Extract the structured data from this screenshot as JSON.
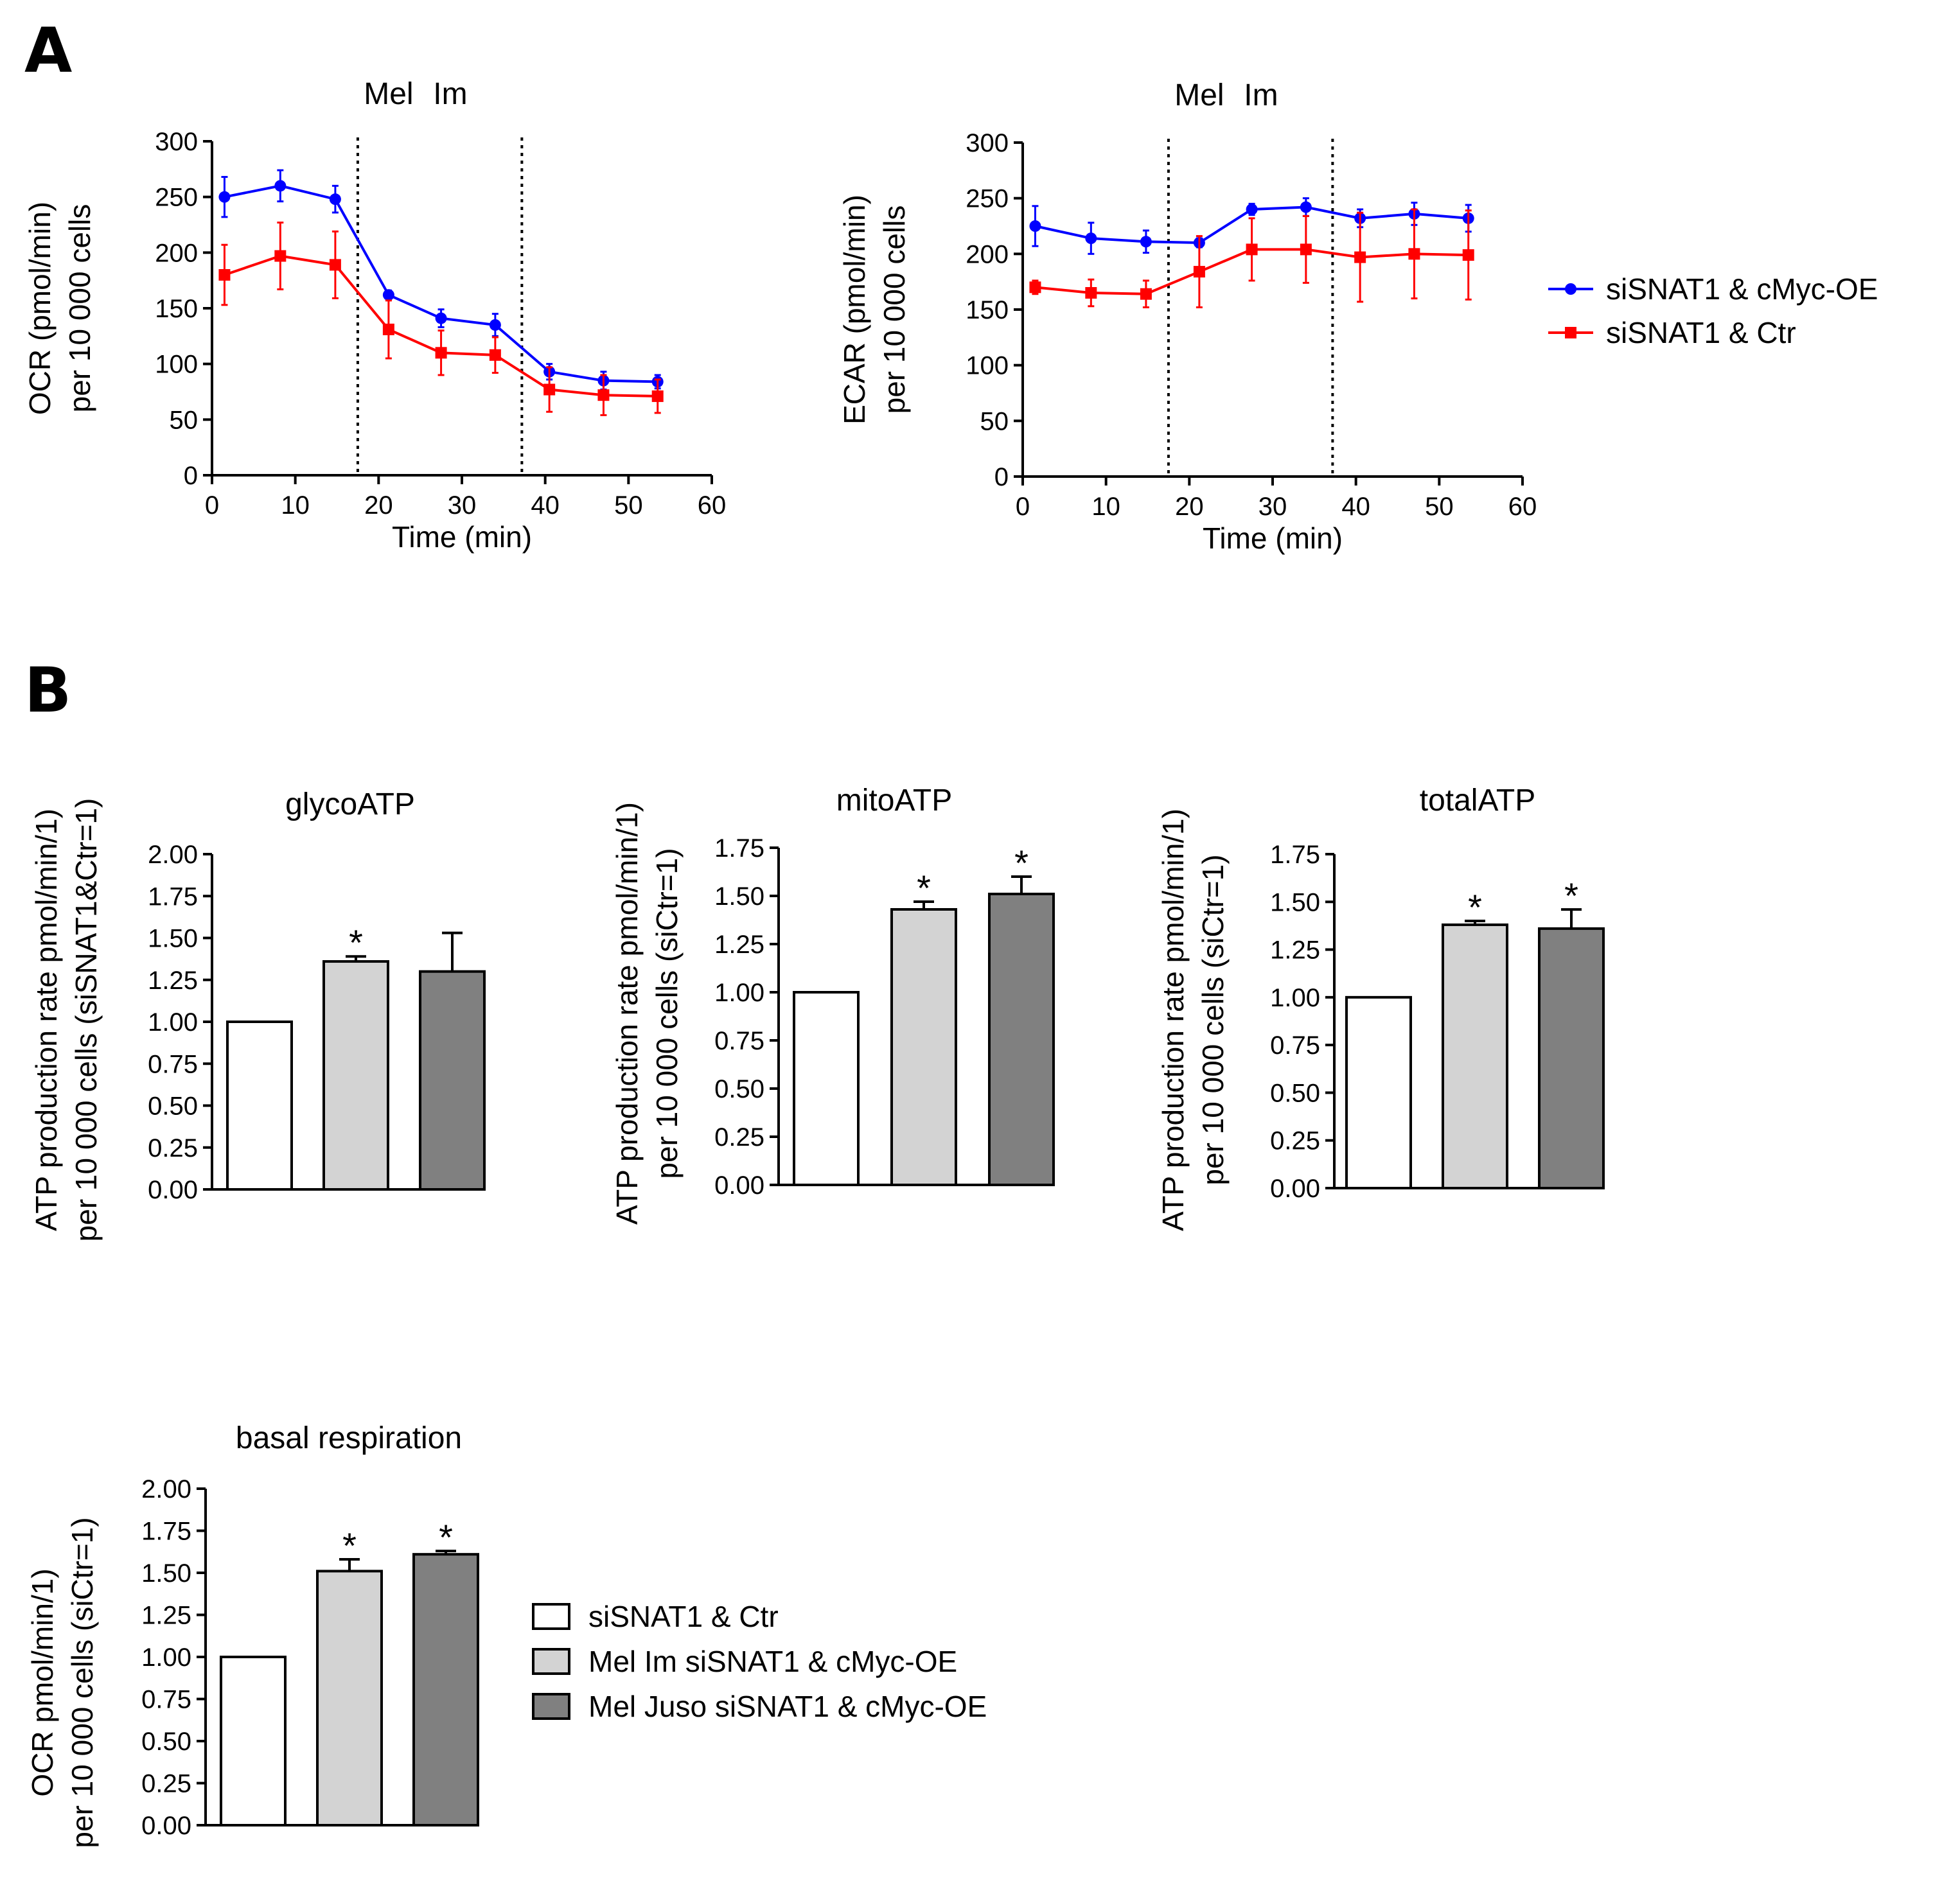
{
  "panels": {
    "a_label": "A",
    "b_label": "B"
  },
  "legend_lines": [
    {
      "label": "siSNAT1 & cMyc-OE",
      "color": "#0000ff",
      "marker": "circle"
    },
    {
      "label": "siSNAT1 & Ctr",
      "color": "#ff0000",
      "marker": "square"
    }
  ],
  "legend_bars": [
    {
      "label": "siSNAT1 & Ctr",
      "fill": "#ffffff"
    },
    {
      "label": "Mel Im siSNAT1 & cMyc-OE",
      "fill": "#d3d3d3"
    },
    {
      "label": "Mel Juso siSNAT1 & cMyc-OE",
      "fill": "#808080"
    }
  ],
  "chart_data": [
    {
      "type": "line",
      "id": "ocr",
      "ylabel_lines": [
        "OCR (pmol/min)",
        "per 10 000 cells"
      ],
      "xlabel": "Time (min)",
      "annotations": [
        "Mel",
        "Im"
      ],
      "injection_times": [
        17.5,
        37.2
      ],
      "xlim": [
        0,
        60
      ],
      "ylim": [
        0,
        300
      ],
      "xticks": [
        0,
        10,
        20,
        30,
        40,
        50,
        60
      ],
      "yticks": [
        0,
        50,
        100,
        150,
        200,
        250,
        300
      ],
      "x": [
        1.5,
        8.2,
        14.8,
        21.2,
        27.5,
        34.0,
        40.5,
        47.0,
        53.5
      ],
      "series": [
        {
          "name": "siSNAT1 & cMyc-OE",
          "color": "#0000ff",
          "marker": "circle",
          "values": [
            250,
            260,
            248,
            162,
            141,
            135,
            93,
            85,
            84
          ],
          "errors": [
            18,
            14,
            12,
            4,
            8,
            10,
            7,
            8,
            6
          ]
        },
        {
          "name": "siSNAT1 & Ctr",
          "color": "#ff0000",
          "marker": "square",
          "values": [
            180,
            197,
            189,
            131,
            110,
            108,
            77,
            72,
            71
          ],
          "errors": [
            27,
            30,
            30,
            26,
            20,
            16,
            20,
            18,
            15
          ]
        }
      ]
    },
    {
      "type": "line",
      "id": "ecar",
      "ylabel_lines": [
        "ECAR (pmol/min)",
        "per 10 000 cells"
      ],
      "xlabel": "Time (min)",
      "annotations": [
        "Mel",
        "Im"
      ],
      "injection_times": [
        17.5,
        37.2
      ],
      "xlim": [
        0,
        60
      ],
      "ylim": [
        0,
        300
      ],
      "xticks": [
        0,
        10,
        20,
        30,
        40,
        50,
        60
      ],
      "yticks": [
        0,
        50,
        100,
        150,
        200,
        250,
        300
      ],
      "x": [
        1.5,
        8.2,
        14.8,
        21.2,
        27.5,
        34.0,
        40.5,
        47.0,
        53.5
      ],
      "series": [
        {
          "name": "siSNAT1 & cMyc-OE",
          "color": "#0000ff",
          "marker": "circle",
          "values": [
            225,
            214,
            211,
            210,
            240,
            242,
            232,
            236,
            232
          ],
          "errors": [
            18,
            14,
            10,
            4,
            5,
            8,
            8,
            10,
            12
          ]
        },
        {
          "name": "siSNAT1 & Ctr",
          "color": "#ff0000",
          "marker": "square",
          "values": [
            170,
            165,
            164,
            184,
            204,
            204,
            197,
            200,
            199
          ],
          "errors": [
            6,
            12,
            12,
            32,
            28,
            30,
            40,
            40,
            40
          ]
        }
      ]
    },
    {
      "type": "bar",
      "id": "glyco",
      "title": "glycoATP",
      "ylabel_lines": [
        "ATP production rate pmol/min/1)",
        "per 10 000 cells (siSNAT1&Ctr=1)"
      ],
      "ylim": [
        0,
        2.0
      ],
      "yticks": [
        "0.00",
        "0.25",
        "0.50",
        "0.75",
        "1.00",
        "1.25",
        "1.50",
        "1.75",
        "2.00"
      ],
      "values": [
        1.0,
        1.36,
        1.3
      ],
      "errors": [
        0,
        0.03,
        0.23
      ],
      "significance": [
        "",
        "*",
        ""
      ],
      "fills": [
        "#ffffff",
        "#d3d3d3",
        "#808080"
      ]
    },
    {
      "type": "bar",
      "id": "mito",
      "title": "mitoATP",
      "ylabel_lines": [
        "ATP production rate pmol/min/1)",
        "per 10 000 cells (siCtr=1)"
      ],
      "ylim": [
        0,
        1.75
      ],
      "yticks": [
        "0.00",
        "0.25",
        "0.50",
        "0.75",
        "1.00",
        "1.25",
        "1.50",
        "1.75"
      ],
      "values": [
        1.0,
        1.43,
        1.51
      ],
      "errors": [
        0,
        0.04,
        0.09
      ],
      "significance": [
        "",
        "*",
        "*"
      ],
      "fills": [
        "#ffffff",
        "#d3d3d3",
        "#808080"
      ]
    },
    {
      "type": "bar",
      "id": "total",
      "title": "totalATP",
      "ylabel_lines": [
        "ATP production rate pmol/min/1)",
        "per 10 000 cells (siCtr=1)"
      ],
      "ylim": [
        0,
        1.75
      ],
      "yticks": [
        "0.00",
        "0.25",
        "0.50",
        "0.75",
        "1.00",
        "1.25",
        "1.50",
        "1.75"
      ],
      "values": [
        1.0,
        1.38,
        1.36
      ],
      "errors": [
        0,
        0.02,
        0.1
      ],
      "significance": [
        "",
        "*",
        "*"
      ],
      "fills": [
        "#ffffff",
        "#d3d3d3",
        "#808080"
      ]
    },
    {
      "type": "bar",
      "id": "basal",
      "title": "basal respiration",
      "ylabel_lines": [
        "OCR pmol/min/1)",
        "per 10 000 cells (siCtr=1)"
      ],
      "ylim": [
        0,
        2.0
      ],
      "yticks": [
        "0.00",
        "0.25",
        "0.50",
        "0.75",
        "1.00",
        "1.25",
        "1.50",
        "1.75",
        "2.00"
      ],
      "values": [
        1.0,
        1.51,
        1.61
      ],
      "errors": [
        0,
        0.07,
        0.02
      ],
      "significance": [
        "",
        "*",
        "*"
      ],
      "fills": [
        "#ffffff",
        "#d3d3d3",
        "#808080"
      ]
    }
  ]
}
